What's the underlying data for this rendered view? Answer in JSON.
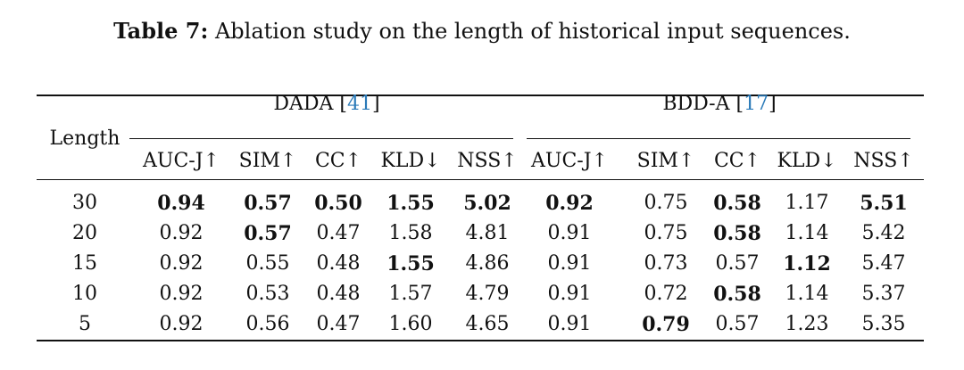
{
  "caption": {
    "label": "Table 7:",
    "text": "Ablation study on the length of historical input sequences."
  },
  "table": {
    "row_header": "Length",
    "groups": [
      {
        "name": "DADA [",
        "cite": "41",
        "close": "]"
      },
      {
        "name": "BDD-A [",
        "cite": "17",
        "close": "]"
      }
    ],
    "metrics": [
      "AUC-J↑",
      "SIM↑",
      "CC↑",
      "KLD↓",
      "NSS↑",
      "AUC-J↑",
      "SIM↑",
      "CC↑",
      "KLD↓",
      "NSS↑"
    ],
    "rows": [
      {
        "length": "30",
        "values": [
          "0.94",
          "0.57",
          "0.50",
          "1.55",
          "5.02",
          "0.92",
          "0.75",
          "0.58",
          "1.17",
          "5.51"
        ],
        "bold": [
          true,
          true,
          true,
          true,
          true,
          true,
          false,
          true,
          false,
          true
        ]
      },
      {
        "length": "20",
        "values": [
          "0.92",
          "0.57",
          "0.47",
          "1.58",
          "4.81",
          "0.91",
          "0.75",
          "0.58",
          "1.14",
          "5.42"
        ],
        "bold": [
          false,
          true,
          false,
          false,
          false,
          false,
          false,
          true,
          false,
          false
        ]
      },
      {
        "length": "15",
        "values": [
          "0.92",
          "0.55",
          "0.48",
          "1.55",
          "4.86",
          "0.91",
          "0.73",
          "0.57",
          "1.12",
          "5.47"
        ],
        "bold": [
          false,
          false,
          false,
          true,
          false,
          false,
          false,
          false,
          true,
          false
        ]
      },
      {
        "length": "10",
        "values": [
          "0.92",
          "0.53",
          "0.48",
          "1.57",
          "4.79",
          "0.91",
          "0.72",
          "0.58",
          "1.14",
          "5.37"
        ],
        "bold": [
          false,
          false,
          false,
          false,
          false,
          false,
          false,
          true,
          false,
          false
        ]
      },
      {
        "length": "5",
        "values": [
          "0.92",
          "0.56",
          "0.47",
          "1.60",
          "4.65",
          "0.91",
          "0.79",
          "0.57",
          "1.23",
          "5.35"
        ],
        "bold": [
          false,
          false,
          false,
          false,
          false,
          false,
          true,
          false,
          false,
          false
        ]
      }
    ]
  }
}
